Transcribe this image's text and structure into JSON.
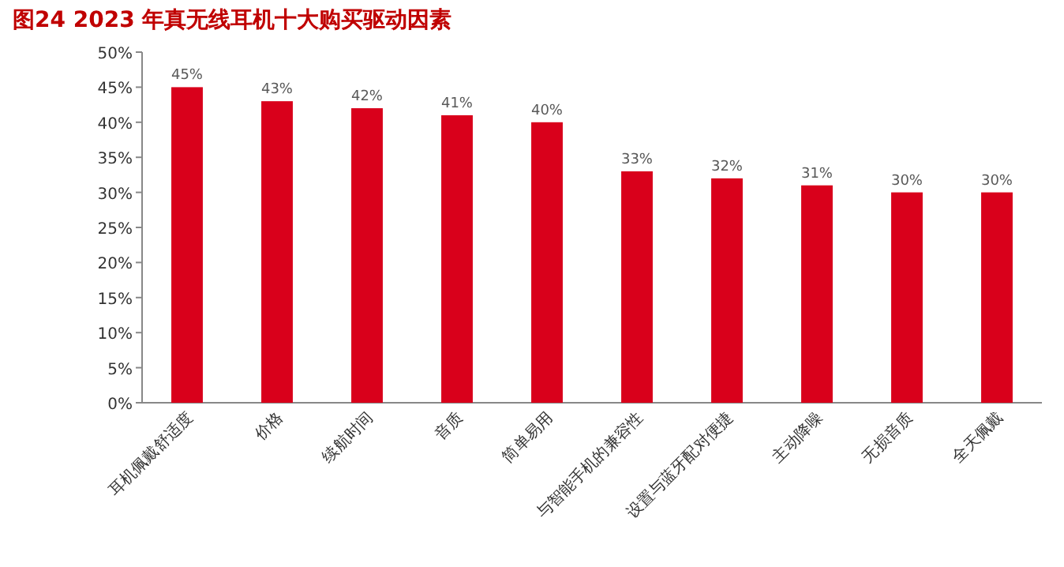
{
  "chart_data": {
    "type": "bar",
    "title": "图24  2023 年真无线耳机十大购买驱动因素",
    "categories": [
      "耳机佩戴舒适度",
      "价格",
      "续航时间",
      "音质",
      "简单易用",
      "与智能手机的兼容性",
      "设置与蓝牙配对便捷",
      "主动降噪",
      "无损音质",
      "全天佩戴"
    ],
    "values": [
      45,
      43,
      42,
      41,
      40,
      33,
      32,
      31,
      30,
      30
    ],
    "value_labels": [
      "45%",
      "43%",
      "42%",
      "41%",
      "40%",
      "33%",
      "32%",
      "31%",
      "30%",
      "30%"
    ],
    "color": "#d9001b",
    "ylim": [
      0,
      50
    ],
    "yticks": [
      {
        "value": 0,
        "label": "0%"
      },
      {
        "value": 5,
        "label": "5%"
      },
      {
        "value": 10,
        "label": "10%"
      },
      {
        "value": 15,
        "label": "15%"
      },
      {
        "value": 20,
        "label": "20%"
      },
      {
        "value": 25,
        "label": "25%"
      },
      {
        "value": 30,
        "label": "30%"
      },
      {
        "value": 35,
        "label": "35%"
      },
      {
        "value": 40,
        "label": "40%"
      },
      {
        "value": 45,
        "label": "45%"
      },
      {
        "value": 50,
        "label": "50%"
      }
    ],
    "grid": false
  }
}
